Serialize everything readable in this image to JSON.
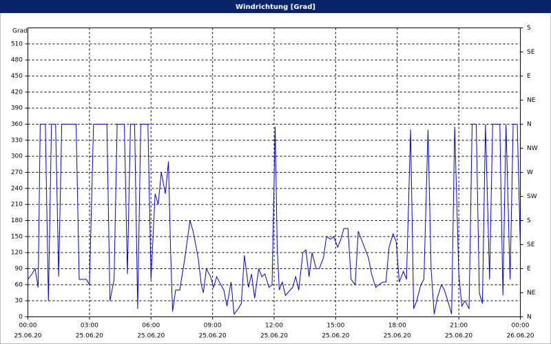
{
  "chart_data": {
    "type": "line",
    "title": "Windrichtung [Grad]",
    "y_label": "Grad",
    "x": [
      0,
      0.2,
      0.35,
      0.5,
      0.6,
      0.85,
      1.0,
      1.15,
      1.35,
      1.5,
      1.65,
      2.35,
      2.5,
      2.85,
      3.0,
      3.2,
      3.85,
      4.0,
      4.2,
      4.35,
      4.7,
      4.85,
      5.0,
      5.2,
      5.35,
      5.5,
      5.85,
      6.0,
      6.2,
      6.35,
      6.5,
      6.7,
      6.85,
      6.95,
      7.05,
      7.2,
      7.4,
      7.65,
      7.9,
      8.05,
      8.3,
      8.45,
      8.55,
      8.7,
      8.9,
      9.05,
      9.2,
      9.4,
      9.55,
      9.7,
      9.9,
      10.05,
      10.25,
      10.4,
      10.55,
      10.75,
      10.9,
      11.05,
      11.25,
      11.4,
      11.55,
      11.75,
      11.9,
      12.05,
      12.15,
      12.25,
      12.4,
      12.55,
      12.9,
      13.05,
      13.2,
      13.4,
      13.55,
      13.7,
      13.85,
      14.05,
      14.2,
      14.4,
      14.55,
      14.75,
      14.9,
      15.1,
      15.25,
      15.4,
      15.6,
      15.75,
      15.95,
      16.1,
      16.25,
      16.45,
      16.6,
      16.75,
      16.95,
      17.1,
      17.3,
      17.45,
      17.6,
      17.8,
      17.95,
      18.1,
      18.3,
      18.45,
      18.65,
      18.8,
      18.95,
      19.15,
      19.3,
      19.5,
      19.65,
      19.8,
      19.95,
      20.15,
      20.3,
      20.5,
      20.65,
      20.8,
      21.0,
      21.15,
      21.3,
      21.5,
      21.65,
      21.85,
      22.0,
      22.15,
      22.3,
      22.5,
      22.65,
      23.0,
      23.15,
      23.3,
      23.5,
      23.65,
      23.85,
      24.0
    ],
    "series": [
      {
        "name": "Windrichtung",
        "color": "#0000cc",
        "values": [
          70,
          80,
          90,
          55,
          360,
          360,
          30,
          360,
          360,
          75,
          360,
          360,
          70,
          70,
          60,
          360,
          360,
          30,
          70,
          360,
          360,
          80,
          360,
          360,
          15,
          360,
          360,
          70,
          230,
          210,
          270,
          230,
          290,
          130,
          10,
          50,
          50,
          110,
          180,
          160,
          110,
          60,
          45,
          90,
          75,
          55,
          75,
          60,
          50,
          20,
          65,
          5,
          15,
          25,
          115,
          55,
          80,
          35,
          90,
          75,
          80,
          55,
          60,
          355,
          130,
          50,
          65,
          40,
          55,
          75,
          50,
          120,
          125,
          75,
          120,
          90,
          90,
          110,
          150,
          145,
          150,
          130,
          145,
          165,
          165,
          70,
          60,
          160,
          145,
          125,
          110,
          80,
          55,
          60,
          65,
          65,
          130,
          155,
          140,
          65,
          85,
          70,
          350,
          15,
          30,
          60,
          70,
          350,
          90,
          5,
          35,
          60,
          50,
          25,
          5,
          355,
          80,
          20,
          30,
          15,
          360,
          360,
          45,
          25,
          360,
          70,
          360,
          360,
          40,
          360,
          70,
          360,
          360,
          130
        ]
      }
    ],
    "xlim": [
      0,
      24
    ],
    "xticks": [
      {
        "value": 0,
        "label": "00:00"
      },
      {
        "value": 3,
        "label": "03:00"
      },
      {
        "value": 6,
        "label": "06:00"
      },
      {
        "value": 9,
        "label": "09:00"
      },
      {
        "value": 12,
        "label": "12:00"
      },
      {
        "value": 15,
        "label": "15:00"
      },
      {
        "value": 18,
        "label": "18:00"
      },
      {
        "value": 21,
        "label": "21:00"
      },
      {
        "value": 24,
        "label": "00:00"
      }
    ],
    "xtick_dates": [
      "25.06.20",
      "25.06.20",
      "25.06.20",
      "25.06.20",
      "25.06.20",
      "25.06.20",
      "25.06.20",
      "25.06.20",
      "26.06.20"
    ],
    "ylim": [
      0,
      540
    ],
    "yticks": [
      0,
      30,
      60,
      90,
      120,
      150,
      180,
      210,
      240,
      270,
      300,
      330,
      360,
      390,
      420,
      450,
      480,
      510
    ],
    "y2lim": [
      0,
      540
    ],
    "y2ticks": [
      {
        "value": 0,
        "label": "N"
      },
      {
        "value": 45,
        "label": "NE"
      },
      {
        "value": 90,
        "label": "E"
      },
      {
        "value": 135,
        "label": "SE"
      },
      {
        "value": 180,
        "label": "S"
      },
      {
        "value": 225,
        "label": "SW"
      },
      {
        "value": 270,
        "label": "W"
      },
      {
        "value": 315,
        "label": "NW"
      },
      {
        "value": 360,
        "label": "N"
      },
      {
        "value": 405,
        "label": "NE"
      },
      {
        "value": 450,
        "label": "E"
      },
      {
        "value": 495,
        "label": "SE"
      },
      {
        "value": 540,
        "label": "S"
      }
    ],
    "grid": true
  }
}
